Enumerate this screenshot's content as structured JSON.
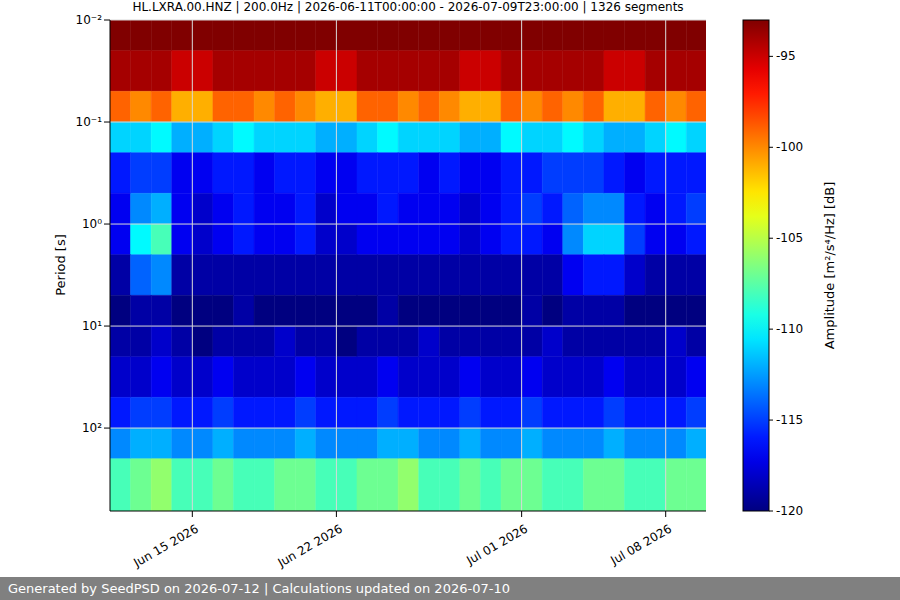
{
  "chart_data": {
    "type": "heatmap",
    "title": "HL.LXRA.00.HNZ | 200.0Hz | 2026-06-11T00:00:00 - 2026-07-09T23:00:00 | 1326 segments",
    "y_label": "Period [s]",
    "colorbar_label": "Amplitude [m²/s⁴/Hz] [dB]",
    "footer": "Generated by SeedPSD on 2026-07-12 | Calculations updated on 2026-07-10",
    "log": "y",
    "grid": true,
    "xlim": [
      "2026-06-11T00:00:00",
      "2026-07-09T23:00:00"
    ],
    "xticks": [
      {
        "value": "2026-06-15",
        "label": "Jun 15 2026"
      },
      {
        "value": "2026-06-22",
        "label": "Jun 22 2026"
      },
      {
        "value": "2026-07-01",
        "label": "Jul 01 2026"
      },
      {
        "value": "2026-07-08",
        "label": "Jul 08 2026"
      }
    ],
    "ylim": [
      0.01,
      650
    ],
    "yticks": [
      {
        "value": 0.01,
        "label": "10⁻²"
      },
      {
        "value": 0.1,
        "label": "10⁻¹"
      },
      {
        "value": 1,
        "label": "10⁰"
      },
      {
        "value": 10,
        "label": "10¹"
      },
      {
        "value": 100,
        "label": "10²"
      }
    ],
    "x": [
      "2026-06-11",
      "2026-06-12",
      "2026-06-13",
      "2026-06-14",
      "2026-06-15",
      "2026-06-16",
      "2026-06-17",
      "2026-06-18",
      "2026-06-19",
      "2026-06-20",
      "2026-06-21",
      "2026-06-22",
      "2026-06-23",
      "2026-06-24",
      "2026-06-25",
      "2026-06-26",
      "2026-06-27",
      "2026-06-28",
      "2026-06-29",
      "2026-06-30",
      "2026-07-01",
      "2026-07-02",
      "2026-07-03",
      "2026-07-04",
      "2026-07-05",
      "2026-07-06",
      "2026-07-07",
      "2026-07-08",
      "2026-07-09"
    ],
    "period_edges": [
      0.01,
      0.02,
      0.05,
      0.1,
      0.2,
      0.5,
      1,
      2,
      5,
      10,
      20,
      50,
      100,
      200,
      650
    ],
    "cells": [
      [
        -93,
        -93,
        -93,
        -93,
        -93,
        -93,
        -93,
        -93,
        -93,
        -93,
        -93,
        -93,
        -93,
        -93,
        -93,
        -93,
        -93,
        -93,
        -93,
        -93,
        -93,
        -93,
        -93,
        -93,
        -93,
        -93,
        -93,
        -93,
        -93
      ],
      [
        -94,
        -94,
        -94,
        -95,
        -95,
        -94,
        -94,
        -94,
        -94,
        -94,
        -95,
        -95,
        -94,
        -94,
        -94,
        -94,
        -94,
        -95,
        -95,
        -94,
        -94,
        -94,
        -94,
        -94,
        -95,
        -95,
        -94,
        -94,
        -94
      ],
      [
        -99,
        -100,
        -99,
        -101,
        -101,
        -99,
        -99,
        -100,
        -99,
        -100,
        -101,
        -101,
        -99,
        -99,
        -100,
        -99,
        -100,
        -101,
        -101,
        -99,
        -100,
        -99,
        -100,
        -99,
        -101,
        -101,
        -99,
        -100,
        -99
      ],
      [
        -111,
        -111,
        -110,
        -112,
        -112,
        -111,
        -110,
        -111,
        -111,
        -111,
        -112,
        -112,
        -111,
        -110,
        -111,
        -111,
        -111,
        -112,
        -112,
        -110,
        -111,
        -111,
        -110,
        -111,
        -112,
        -112,
        -111,
        -110,
        -111
      ],
      [
        -116,
        -115,
        -115,
        -117,
        -117,
        -116,
        -116,
        -117,
        -116,
        -116,
        -117,
        -117,
        -116,
        -116,
        -116,
        -117,
        -116,
        -117,
        -117,
        -116,
        -116,
        -115,
        -115,
        -115,
        -116,
        -117,
        -116,
        -116,
        -116
      ],
      [
        -117,
        -113,
        -112,
        -117,
        -118,
        -117,
        -116,
        -117,
        -117,
        -116,
        -118,
        -117,
        -117,
        -116,
        -117,
        -117,
        -117,
        -118,
        -117,
        -116,
        -115,
        -116,
        -114,
        -113,
        -113,
        -116,
        -117,
        -116,
        -115
      ],
      [
        -117,
        -110,
        -108,
        -117,
        -118,
        -117,
        -116,
        -117,
        -117,
        -116,
        -118,
        -118,
        -117,
        -117,
        -117,
        -117,
        -117,
        -118,
        -117,
        -116,
        -116,
        -117,
        -113,
        -111,
        -111,
        -115,
        -117,
        -117,
        -116
      ],
      [
        -119,
        -114,
        -113,
        -119,
        -119,
        -119,
        -119,
        -119,
        -119,
        -119,
        -119,
        -119,
        -119,
        -119,
        -119,
        -119,
        -119,
        -119,
        -119,
        -119,
        -119,
        -119,
        -117,
        -116,
        -116,
        -118,
        -119,
        -119,
        -119
      ],
      [
        -120,
        -119,
        -119,
        -120,
        -120,
        -120,
        -119,
        -120,
        -120,
        -120,
        -120,
        -120,
        -120,
        -119,
        -120,
        -120,
        -120,
        -120,
        -120,
        -120,
        -119,
        -120,
        -119,
        -119,
        -119,
        -120,
        -120,
        -120,
        -120
      ],
      [
        -119,
        -119,
        -118,
        -119,
        -120,
        -119,
        -119,
        -119,
        -118,
        -119,
        -119,
        -120,
        -119,
        -119,
        -119,
        -118,
        -119,
        -119,
        -119,
        -119,
        -119,
        -118,
        -119,
        -119,
        -119,
        -119,
        -119,
        -118,
        -119
      ],
      [
        -118,
        -118,
        -117,
        -118,
        -118,
        -117,
        -118,
        -118,
        -118,
        -117,
        -118,
        -118,
        -118,
        -117,
        -118,
        -118,
        -118,
        -117,
        -118,
        -118,
        -117,
        -118,
        -118,
        -118,
        -117,
        -118,
        -118,
        -118,
        -117
      ],
      [
        -116,
        -115,
        -115,
        -116,
        -116,
        -115,
        -116,
        -116,
        -116,
        -115,
        -116,
        -116,
        -116,
        -115,
        -116,
        -116,
        -116,
        -115,
        -116,
        -116,
        -115,
        -116,
        -116,
        -116,
        -115,
        -116,
        -116,
        -116,
        -115
      ],
      [
        -113,
        -112,
        -112,
        -113,
        -113,
        -112,
        -113,
        -113,
        -113,
        -112,
        -113,
        -113,
        -113,
        -112,
        -112,
        -113,
        -113,
        -112,
        -113,
        -113,
        -112,
        -113,
        -113,
        -113,
        -112,
        -113,
        -113,
        -113,
        -112
      ],
      [
        -108,
        -107,
        -106,
        -108,
        -108,
        -107,
        -108,
        -108,
        -107,
        -107,
        -108,
        -108,
        -107,
        -107,
        -106,
        -108,
        -108,
        -107,
        -108,
        -107,
        -107,
        -108,
        -108,
        -107,
        -107,
        -108,
        -108,
        -107,
        -107
      ]
    ],
    "colorbar_range": [
      -120,
      -93
    ],
    "colorbar_ticks": [
      -120,
      -115,
      -110,
      -105,
      -100,
      -95
    ]
  }
}
